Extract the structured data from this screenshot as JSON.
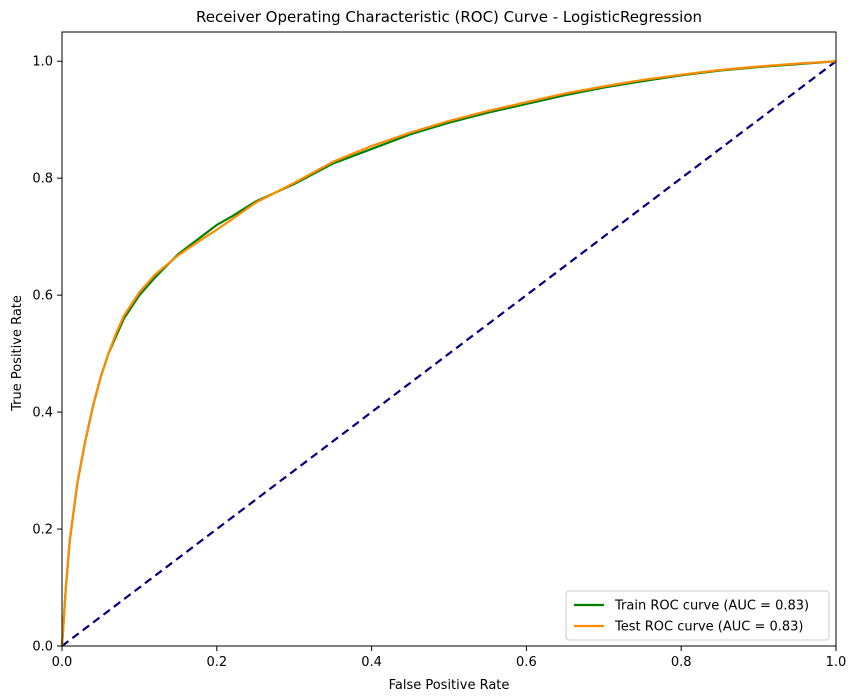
{
  "chart_data": {
    "type": "line",
    "title": "Receiver Operating Characteristic (ROC) Curve - LogisticRegression",
    "xlabel": "False Positive Rate",
    "ylabel": "True Positive Rate",
    "xlim": [
      0,
      1
    ],
    "ylim": [
      0,
      1.05
    ],
    "xticks": [
      "0.0",
      "0.2",
      "0.4",
      "0.6",
      "0.8",
      "1.0"
    ],
    "yticks": [
      "0.0",
      "0.2",
      "0.4",
      "0.6",
      "0.8",
      "1.0"
    ],
    "grid": false,
    "legend_position": "lower-right",
    "series": [
      {
        "name": "Train ROC curve (AUC = 0.83)",
        "color": "#008000",
        "style": "solid",
        "x": [
          0,
          0.005,
          0.01,
          0.02,
          0.03,
          0.04,
          0.05,
          0.06,
          0.07,
          0.08,
          0.1,
          0.12,
          0.15,
          0.18,
          0.2,
          0.22,
          0.25,
          0.3,
          0.35,
          0.4,
          0.45,
          0.5,
          0.55,
          0.6,
          0.65,
          0.7,
          0.75,
          0.8,
          0.85,
          0.9,
          0.95,
          1.0
        ],
        "y": [
          0,
          0.1,
          0.18,
          0.28,
          0.35,
          0.41,
          0.46,
          0.5,
          0.53,
          0.56,
          0.6,
          0.63,
          0.67,
          0.7,
          0.72,
          0.735,
          0.76,
          0.79,
          0.825,
          0.85,
          0.875,
          0.895,
          0.912,
          0.927,
          0.942,
          0.955,
          0.966,
          0.976,
          0.984,
          0.99,
          0.995,
          1.0
        ]
      },
      {
        "name": "Test ROC curve (AUC = 0.83)",
        "color": "#ff8c00",
        "style": "solid",
        "x": [
          0,
          0.005,
          0.01,
          0.02,
          0.03,
          0.04,
          0.05,
          0.06,
          0.07,
          0.08,
          0.1,
          0.12,
          0.15,
          0.18,
          0.2,
          0.22,
          0.25,
          0.3,
          0.35,
          0.4,
          0.45,
          0.5,
          0.55,
          0.6,
          0.65,
          0.7,
          0.75,
          0.8,
          0.85,
          0.9,
          0.95,
          1.0
        ],
        "y": [
          0,
          0.1,
          0.18,
          0.28,
          0.35,
          0.41,
          0.46,
          0.5,
          0.535,
          0.565,
          0.605,
          0.635,
          0.668,
          0.695,
          0.712,
          0.73,
          0.758,
          0.792,
          0.828,
          0.855,
          0.878,
          0.898,
          0.915,
          0.93,
          0.945,
          0.957,
          0.968,
          0.977,
          0.985,
          0.991,
          0.996,
          1.0
        ]
      },
      {
        "color": "#000080",
        "style": "dashed",
        "x": [
          0,
          1
        ],
        "y": [
          0,
          1
        ]
      }
    ]
  }
}
